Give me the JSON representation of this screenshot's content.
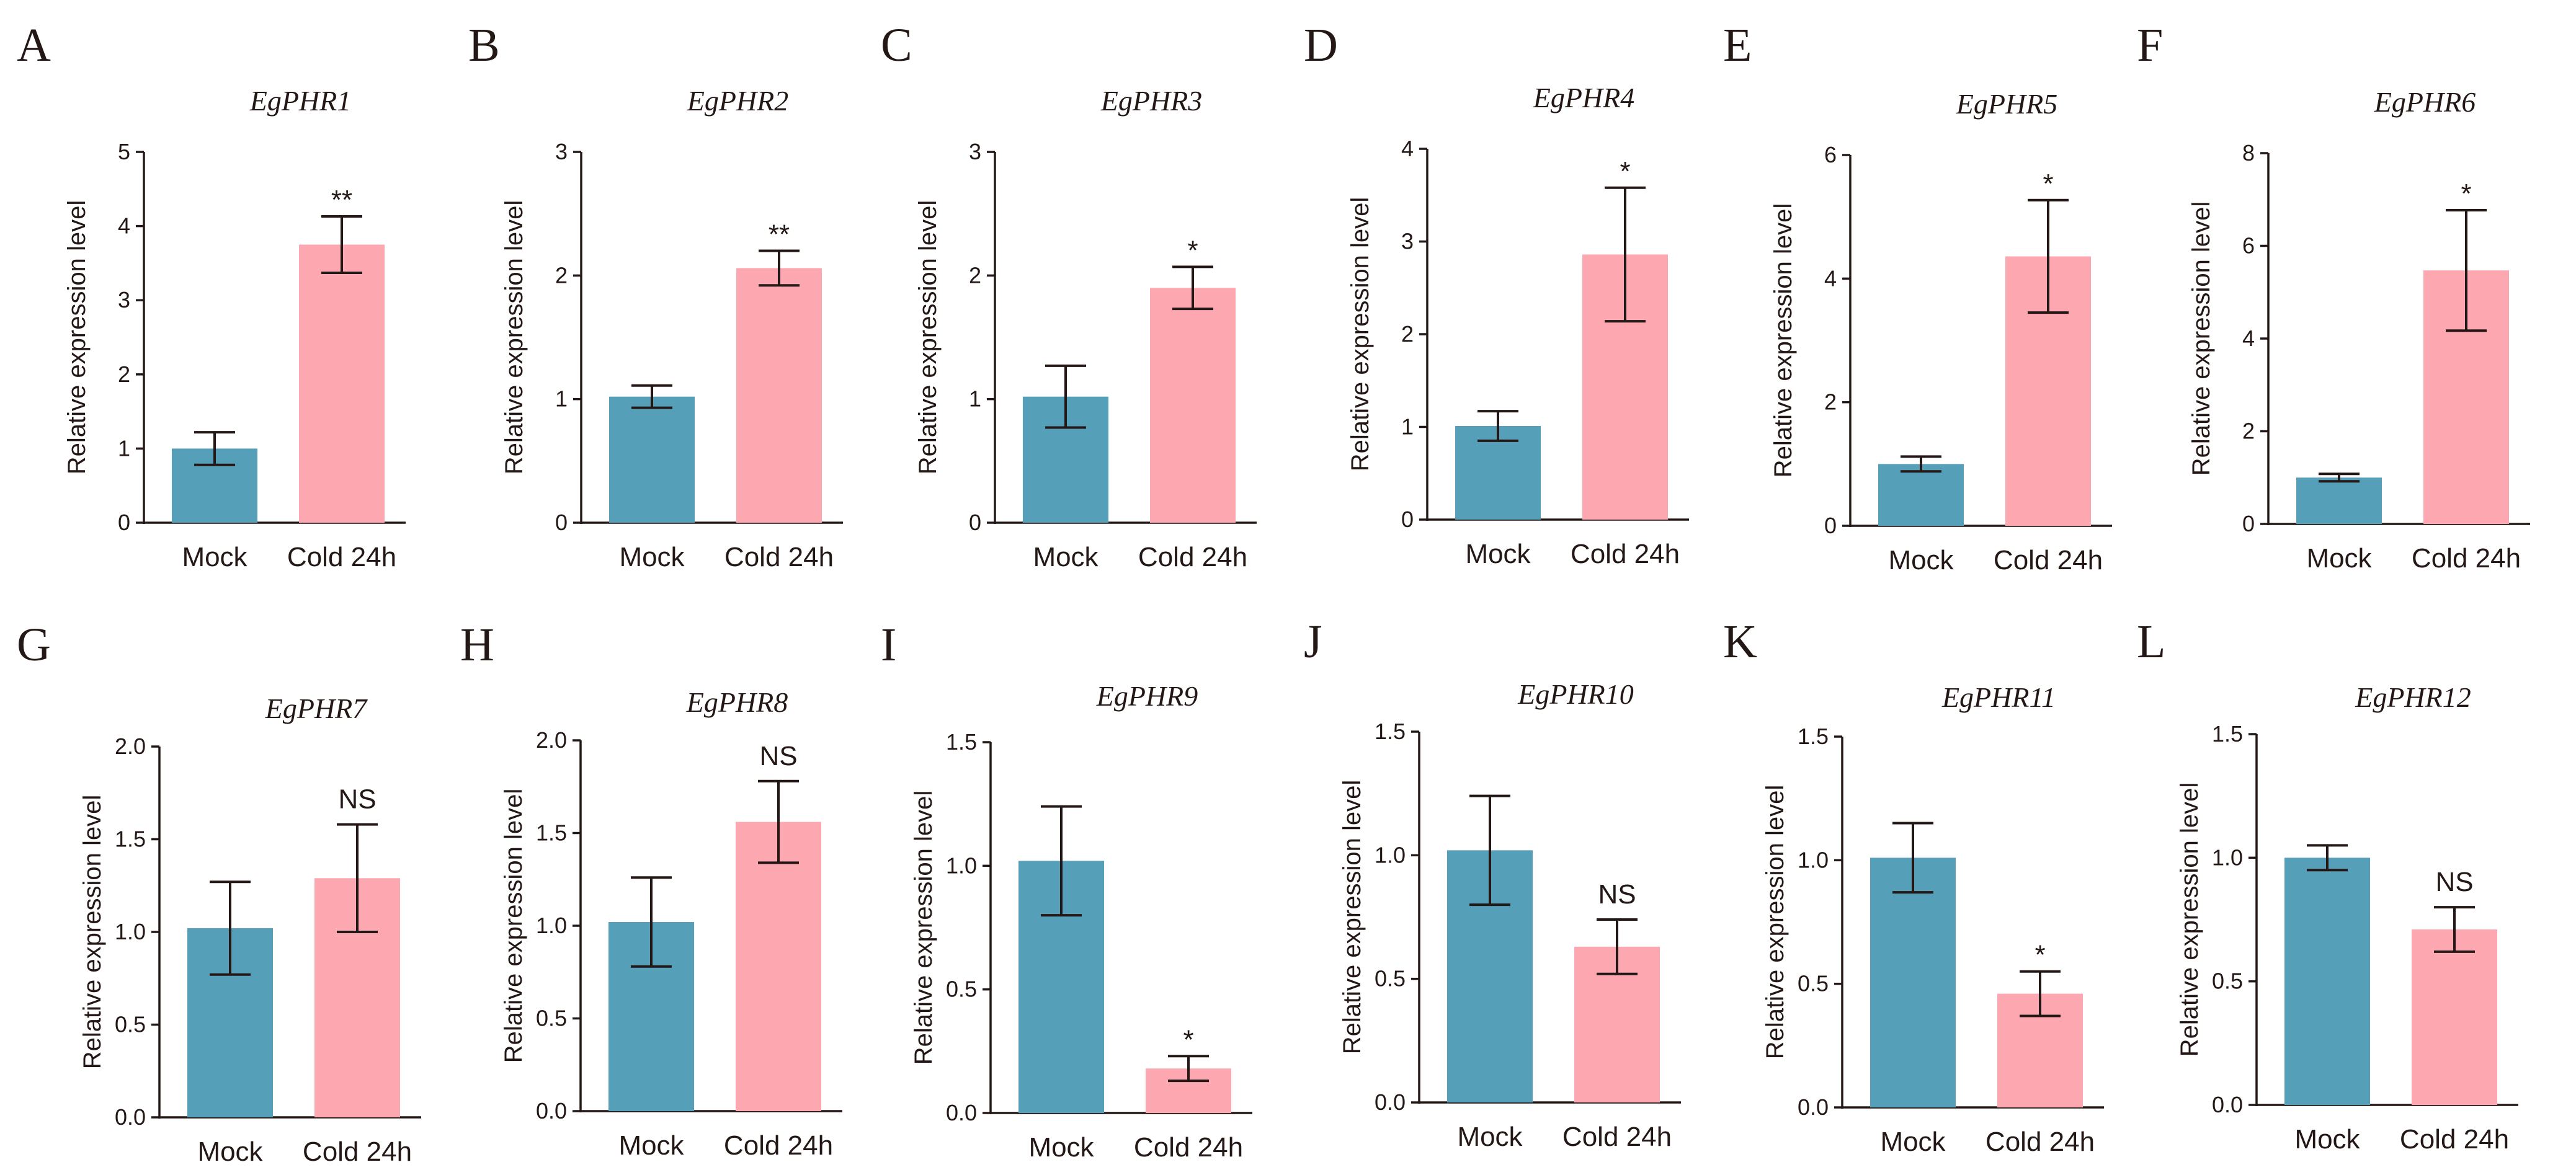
{
  "figure": {
    "colors": {
      "mock": "#559fb9",
      "cold": "#fda7b0",
      "ink": "#231815"
    }
  },
  "chart_data": [
    {
      "panel": "A",
      "type": "bar",
      "title": "EgPHR1",
      "ylabel": "Relative expression level",
      "categories": [
        "Mock",
        "Cold  24h"
      ],
      "values": [
        1.0,
        3.75
      ],
      "errors": [
        0.22,
        0.38
      ],
      "ylim": [
        0,
        5
      ],
      "yticks": [
        "0",
        "1",
        "2",
        "3",
        "4",
        "5"
      ],
      "annotation": "**"
    },
    {
      "panel": "B",
      "type": "bar",
      "title": "EgPHR2",
      "ylabel": "Relative expression level",
      "categories": [
        "Mock",
        "Cold  24h"
      ],
      "values": [
        1.02,
        2.06
      ],
      "errors": [
        0.09,
        0.14
      ],
      "ylim": [
        0,
        3
      ],
      "yticks": [
        "0",
        "1",
        "2",
        "3"
      ],
      "annotation": "**"
    },
    {
      "panel": "C",
      "type": "bar",
      "title": "EgPHR3",
      "ylabel": "Relative expression level",
      "categories": [
        "Mock",
        "Cold  24h"
      ],
      "values": [
        1.02,
        1.9
      ],
      "errors": [
        0.25,
        0.17
      ],
      "ylim": [
        0,
        3
      ],
      "yticks": [
        "0",
        "1",
        "2",
        "3"
      ],
      "annotation": "*"
    },
    {
      "panel": "D",
      "type": "bar",
      "title": "EgPHR4",
      "ylabel": "Relative expression level",
      "categories": [
        "Mock",
        "Cold  24h"
      ],
      "values": [
        1.01,
        2.86
      ],
      "errors": [
        0.16,
        0.72
      ],
      "ylim": [
        0,
        4
      ],
      "yticks": [
        "0",
        "1",
        "2",
        "3",
        "4"
      ],
      "annotation": "*"
    },
    {
      "panel": "E",
      "type": "bar",
      "title": "EgPHR5",
      "ylabel": "Relative expression level",
      "categories": [
        "Mock",
        "Cold  24h"
      ],
      "values": [
        1.0,
        4.36
      ],
      "errors": [
        0.12,
        0.91
      ],
      "ylim": [
        0,
        6
      ],
      "yticks": [
        "0",
        "2",
        "4",
        "6"
      ],
      "annotation": "*"
    },
    {
      "panel": "F",
      "type": "bar",
      "title": "EgPHR6",
      "ylabel": "Relative expression level",
      "categories": [
        "Mock",
        "Cold  24h"
      ],
      "values": [
        1.0,
        5.47
      ],
      "errors": [
        0.08,
        1.3
      ],
      "ylim": [
        0,
        8
      ],
      "yticks": [
        "0",
        "2",
        "4",
        "6",
        "8"
      ],
      "annotation": "*"
    },
    {
      "panel": "G",
      "type": "bar",
      "title": "EgPHR7",
      "ylabel": "Relative expression level",
      "categories": [
        "Mock",
        "Cold  24h"
      ],
      "values": [
        1.02,
        1.29
      ],
      "errors": [
        0.25,
        0.29
      ],
      "ylim": [
        0,
        2
      ],
      "yticks": [
        "0.0",
        "0.5",
        "1.0",
        "1.5",
        "2.0"
      ],
      "annotation": "NS"
    },
    {
      "panel": "H",
      "type": "bar",
      "title": "EgPHR8",
      "ylabel": "Relative expression level",
      "categories": [
        "Mock",
        "Cold  24h"
      ],
      "values": [
        1.02,
        1.56
      ],
      "errors": [
        0.24,
        0.22
      ],
      "ylim": [
        0,
        2
      ],
      "yticks": [
        "0.0",
        "0.5",
        "1.0",
        "1.5",
        "2.0"
      ],
      "annotation": "NS"
    },
    {
      "panel": "I",
      "type": "bar",
      "title": "EgPHR9",
      "ylabel": "Relative expression level",
      "categories": [
        "Mock",
        "Cold  24h"
      ],
      "values": [
        1.02,
        0.18
      ],
      "errors": [
        0.22,
        0.05
      ],
      "ylim": [
        0,
        1.5
      ],
      "yticks": [
        "0.0",
        "0.5",
        "1.0",
        "1.5"
      ],
      "annotation": "*"
    },
    {
      "panel": "J",
      "type": "bar",
      "title": "EgPHR10",
      "ylabel": "Relative expression level",
      "categories": [
        "Mock",
        "Cold  24h"
      ],
      "values": [
        1.02,
        0.63
      ],
      "errors": [
        0.22,
        0.11
      ],
      "ylim": [
        0,
        1.5
      ],
      "yticks": [
        "0.0",
        "0.5",
        "1.0",
        "1.5"
      ],
      "annotation": "NS"
    },
    {
      "panel": "K",
      "type": "bar",
      "title": "EgPHR11",
      "ylabel": "Relative expression level",
      "categories": [
        "Mock",
        "Cold  24h"
      ],
      "values": [
        1.01,
        0.46
      ],
      "errors": [
        0.14,
        0.09
      ],
      "ylim": [
        0,
        1.5
      ],
      "yticks": [
        "0.0",
        "0.5",
        "1.0",
        "1.5"
      ],
      "annotation": "*"
    },
    {
      "panel": "L",
      "type": "bar",
      "title": "EgPHR12",
      "ylabel": "Relative expression level",
      "categories": [
        "Mock",
        "Cold  24h"
      ],
      "values": [
        1.0,
        0.71
      ],
      "errors": [
        0.05,
        0.09
      ],
      "ylim": [
        0,
        1.5
      ],
      "yticks": [
        "0.0",
        "0.5",
        "1.0",
        "1.5"
      ],
      "annotation": "NS"
    }
  ]
}
